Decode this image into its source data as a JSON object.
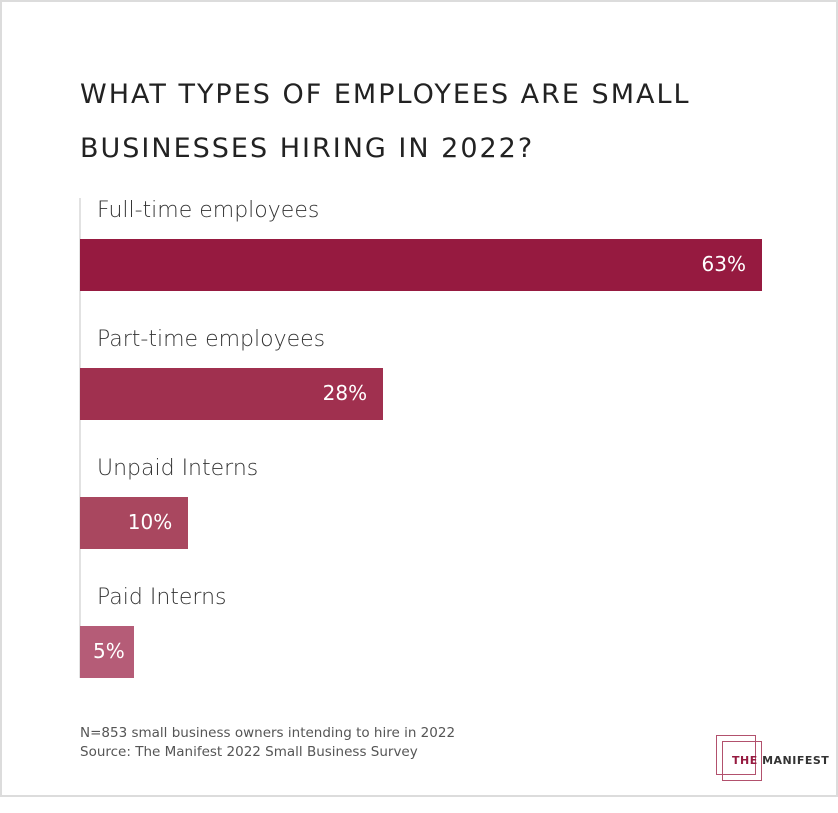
{
  "chart_data": {
    "type": "bar",
    "orientation": "horizontal",
    "title": "WHAT TYPES OF EMPLOYEES ARE SMALL BUSINESSES HIRING IN 2022?",
    "categories": [
      "Full-time employees",
      "Part-time employees",
      "Unpaid Interns",
      "Paid Interns"
    ],
    "values": [
      63,
      28,
      10,
      5
    ],
    "value_labels": [
      "63%",
      "28%",
      "10%",
      "5%"
    ],
    "colors": [
      "#961a40",
      "#a0304f",
      "#a9475f",
      "#b55c77"
    ],
    "unit": "%",
    "grid": false
  },
  "footnote": {
    "sample": "N=853 small business owners intending to hire in 2022",
    "source": "Source: The Manifest 2022 Small Business Survey"
  },
  "logo": {
    "the": "THE",
    "name": "MANIFEST"
  }
}
